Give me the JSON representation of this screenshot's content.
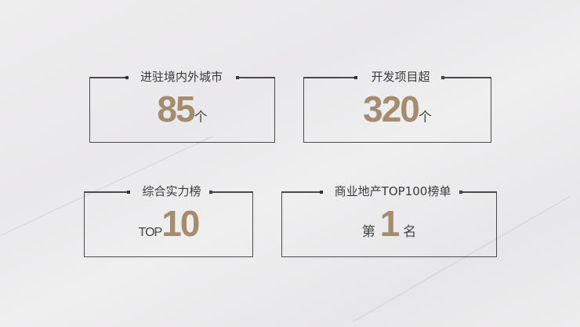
{
  "accent_color": "#a58c6f",
  "stats": [
    {
      "title": "进驻境内外城市",
      "prefix": "",
      "value": "85",
      "unit": "个"
    },
    {
      "title": "开发项目超",
      "prefix": "",
      "value": "320",
      "unit": "个"
    },
    {
      "title": "综合实力榜",
      "prefix": "TOP",
      "value": "10",
      "unit": ""
    },
    {
      "title": "商业地产TOP100榜单",
      "prefix": "第",
      "value": "1",
      "unit": "名"
    }
  ]
}
